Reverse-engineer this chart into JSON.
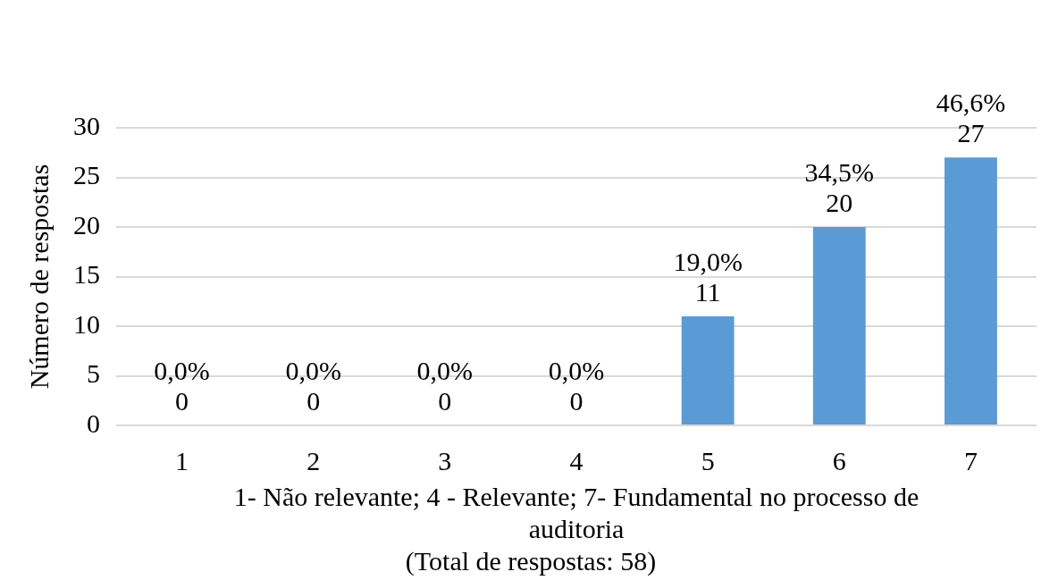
{
  "chart_data": {
    "type": "bar",
    "xlabel": "1- Não relevante; 4 - Relevante; 7- Fundamental no processo de auditoria",
    "ylabel": "Número de respostas",
    "annotations": [
      "(Total de respostas: 58)"
    ],
    "categories": [
      "1",
      "2",
      "3",
      "4",
      "5",
      "6",
      "7"
    ],
    "values": [
      0,
      0,
      0,
      0,
      11,
      20,
      27
    ],
    "value_labels": [
      "0,0%\n0",
      "0,0%\n0",
      "0,0%\n0",
      "0,0%\n0",
      "19,0%\n11",
      "34,5%\n20",
      "46,6%\n27"
    ],
    "color": "#5b9bd5",
    "ylim": [
      0,
      30
    ],
    "yticks": [
      0,
      5,
      10,
      15,
      20,
      25,
      30
    ],
    "grid": "y",
    "legend": false
  }
}
